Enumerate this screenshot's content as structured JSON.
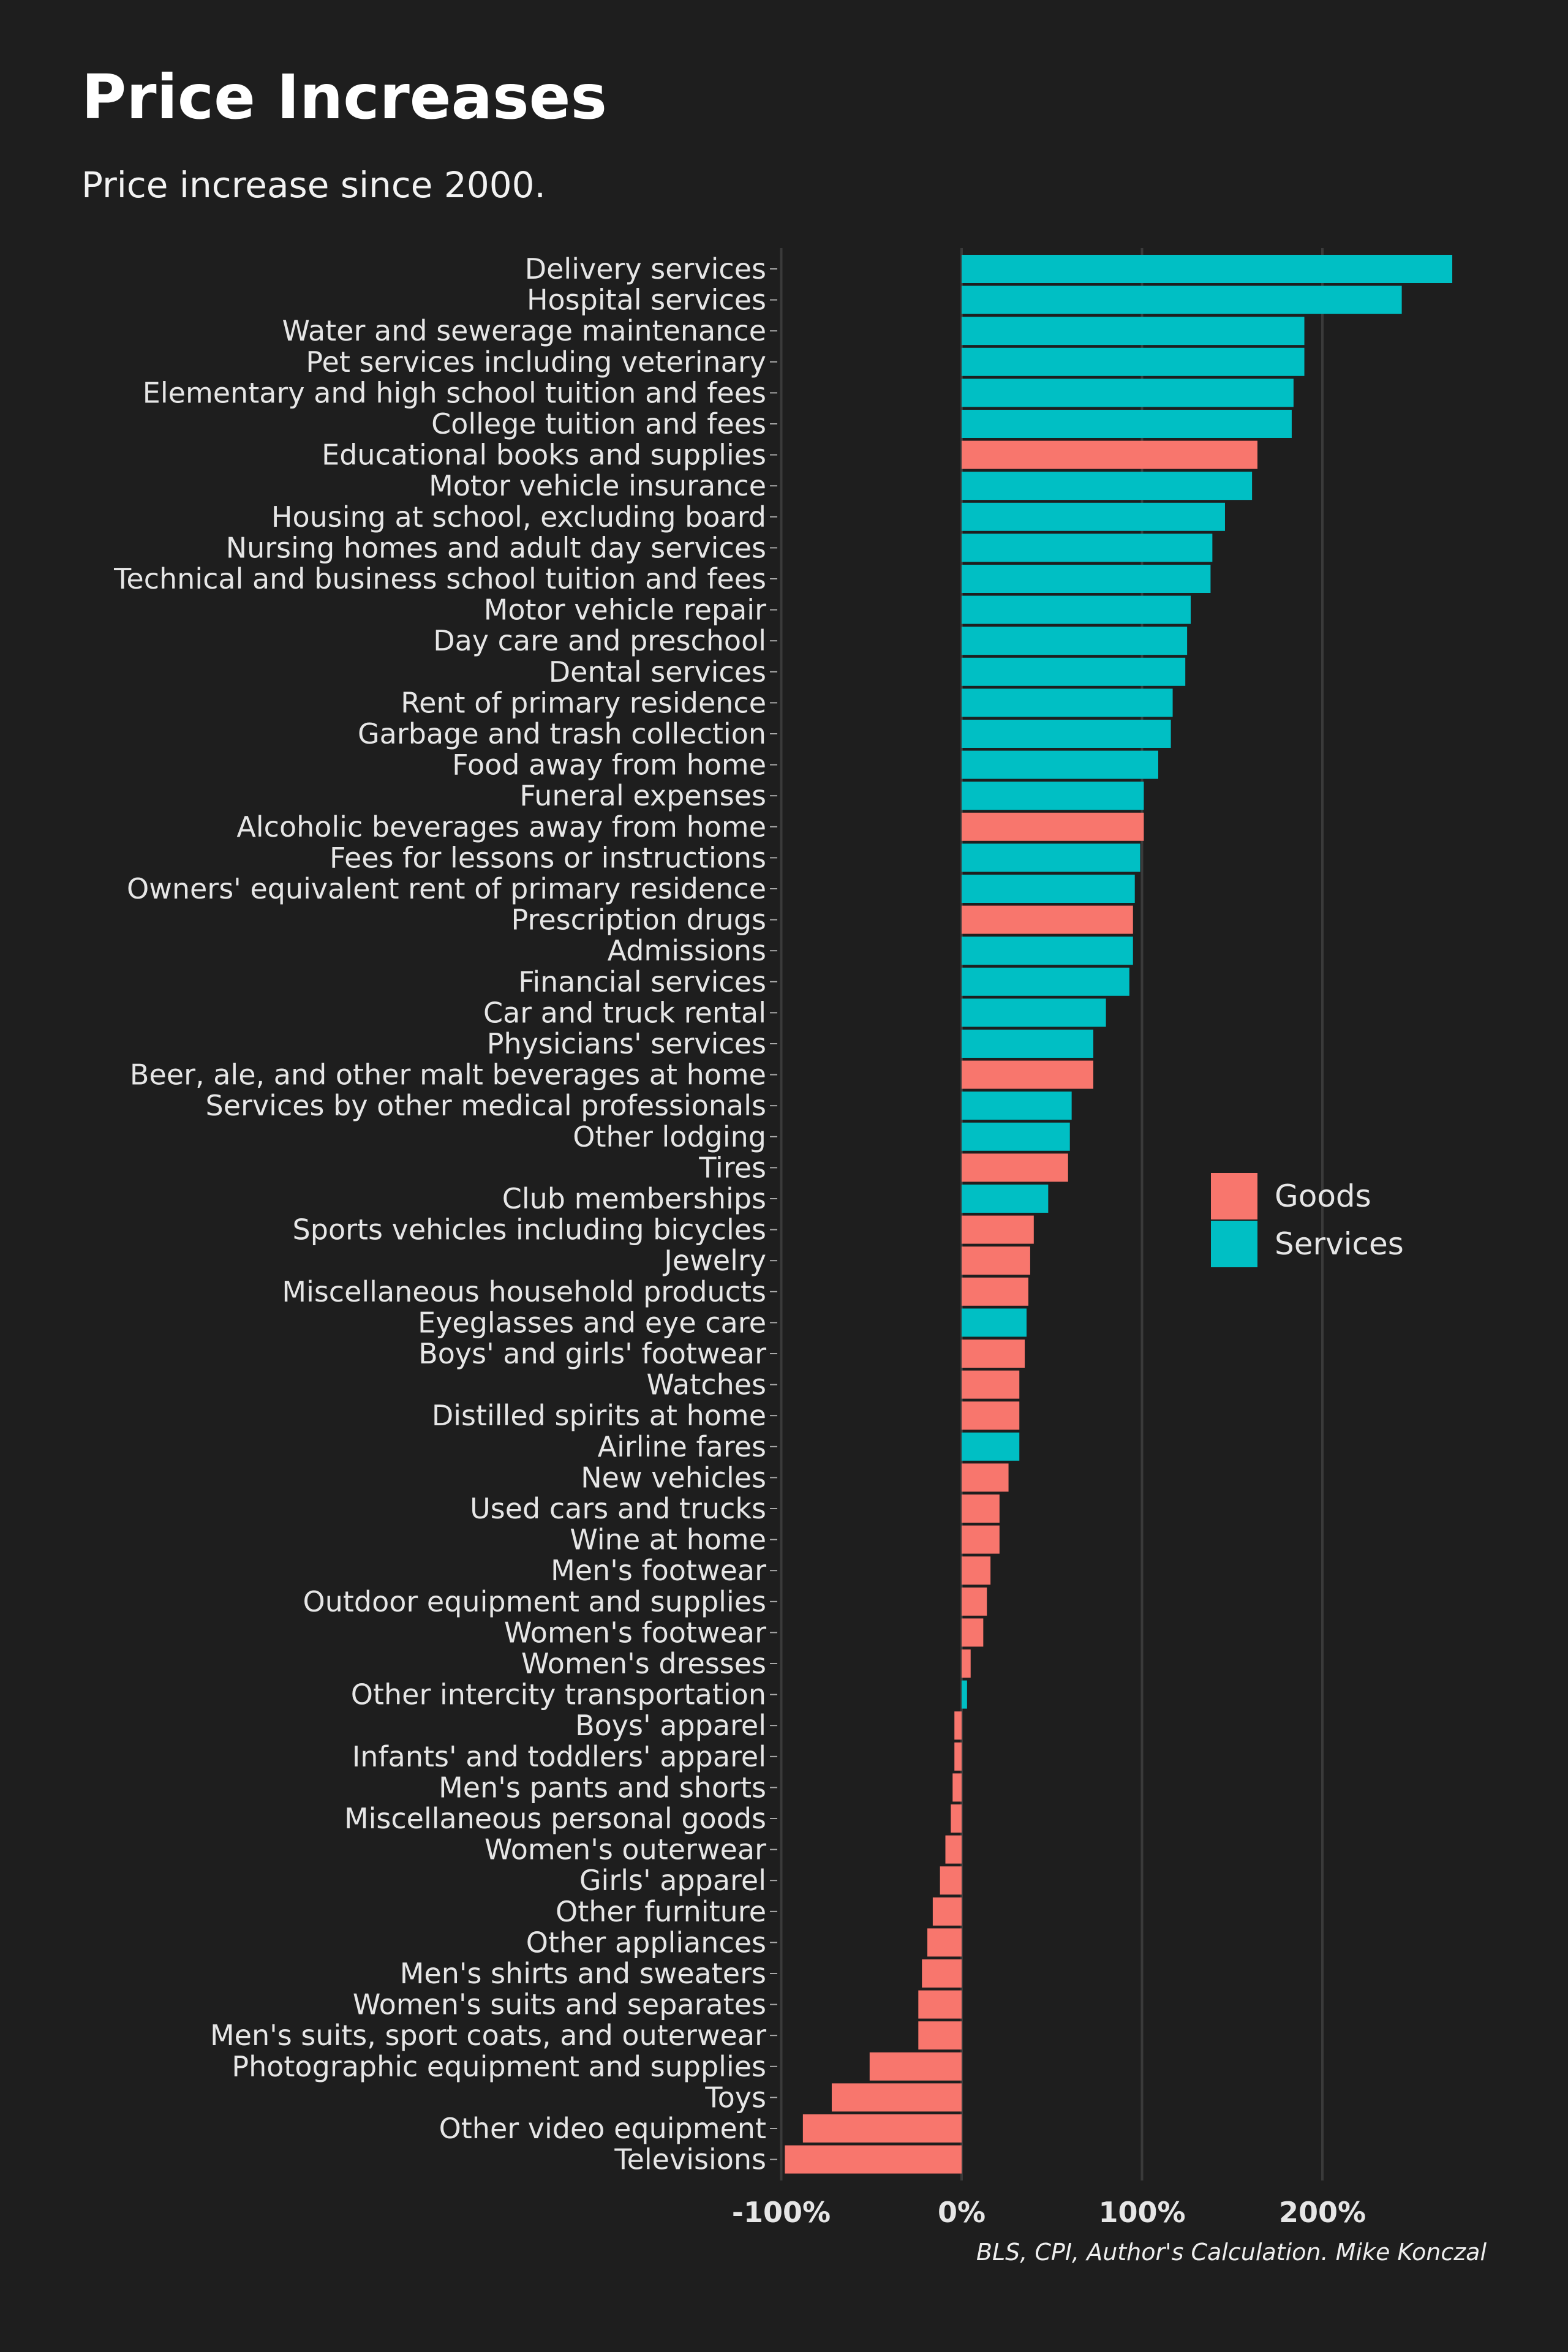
{
  "chart_data": {
    "type": "bar",
    "orientation": "horizontal",
    "title": "Price Increases",
    "subtitle": "Price increase since 2000.",
    "caption": "BLS, CPI, Author's Calculation. Mike Konczal",
    "xlim": [
      -100,
      275
    ],
    "x_ticks": [
      -100,
      0,
      100,
      200
    ],
    "x_tick_labels": [
      "-100%",
      "0%",
      "100%",
      "200%"
    ],
    "grid": true,
    "legend_position": "right-middle",
    "legend": [
      {
        "name": "Goods",
        "color": "#f8766d"
      },
      {
        "name": "Services",
        "color": "#00bfc4"
      }
    ],
    "categories": [
      "Delivery services",
      "Hospital services",
      "Water and sewerage maintenance",
      "Pet services including veterinary",
      "Elementary and high school tuition and fees",
      "College tuition and fees",
      "Educational books and supplies",
      "Motor vehicle insurance",
      "Housing at school, excluding board",
      "Nursing homes and adult day services",
      "Technical and business school tuition and fees",
      "Motor vehicle repair",
      "Day care and preschool",
      "Dental services",
      "Rent of primary residence",
      "Garbage and trash collection",
      "Food away from home",
      "Funeral expenses",
      "Alcoholic beverages away from home",
      "Fees for lessons or instructions",
      "Owners' equivalent rent of primary residence",
      "Prescription drugs",
      "Admissions",
      "Financial services",
      "Car and truck rental",
      "Physicians' services",
      "Beer, ale, and other malt beverages at home",
      "Services by other medical professionals",
      "Other lodging",
      "Tires",
      "Club memberships",
      "Sports vehicles including bicycles",
      "Jewelry",
      "Miscellaneous household products",
      "Eyeglasses and eye care",
      "Boys' and girls' footwear",
      "Watches",
      "Distilled spirits at home",
      "Airline fares",
      "New vehicles",
      "Used cars and trucks",
      "Wine at home",
      "Men's footwear",
      "Outdoor equipment and supplies",
      "Women's footwear",
      "Women's dresses",
      "Other intercity transportation",
      "Boys' apparel",
      "Infants' and toddlers' apparel",
      "Men's pants and shorts",
      "Miscellaneous personal goods",
      "Women's outerwear",
      "Girls' apparel",
      "Other furniture",
      "Other appliances",
      "Men's shirts and sweaters",
      "Women's suits and separates",
      "Men's suits, sport coats, and outerwear",
      "Photographic equipment and supplies",
      "Toys",
      "Other video equipment",
      "Televisions"
    ],
    "values": [
      272,
      244,
      190,
      190,
      184,
      183,
      164,
      161,
      146,
      139,
      138,
      127,
      125,
      124,
      117,
      116,
      109,
      101,
      101,
      99,
      96,
      95,
      95,
      93,
      80,
      73,
      73,
      61,
      60,
      59,
      48,
      40,
      38,
      37,
      36,
      35,
      32,
      32,
      32,
      26,
      21,
      21,
      16,
      14,
      12,
      5,
      3,
      -4,
      -4,
      -5,
      -6,
      -9,
      -12,
      -16,
      -19,
      -22,
      -24,
      -24,
      -51,
      -72,
      -88,
      -98
    ],
    "group": [
      "Services",
      "Services",
      "Services",
      "Services",
      "Services",
      "Services",
      "Goods",
      "Services",
      "Services",
      "Services",
      "Services",
      "Services",
      "Services",
      "Services",
      "Services",
      "Services",
      "Services",
      "Services",
      "Goods",
      "Services",
      "Services",
      "Goods",
      "Services",
      "Services",
      "Services",
      "Services",
      "Goods",
      "Services",
      "Services",
      "Goods",
      "Services",
      "Goods",
      "Goods",
      "Goods",
      "Services",
      "Goods",
      "Goods",
      "Goods",
      "Services",
      "Goods",
      "Goods",
      "Goods",
      "Goods",
      "Goods",
      "Goods",
      "Goods",
      "Services",
      "Goods",
      "Goods",
      "Goods",
      "Goods",
      "Goods",
      "Goods",
      "Goods",
      "Goods",
      "Goods",
      "Goods",
      "Goods",
      "Goods",
      "Goods",
      "Goods",
      "Goods"
    ]
  }
}
